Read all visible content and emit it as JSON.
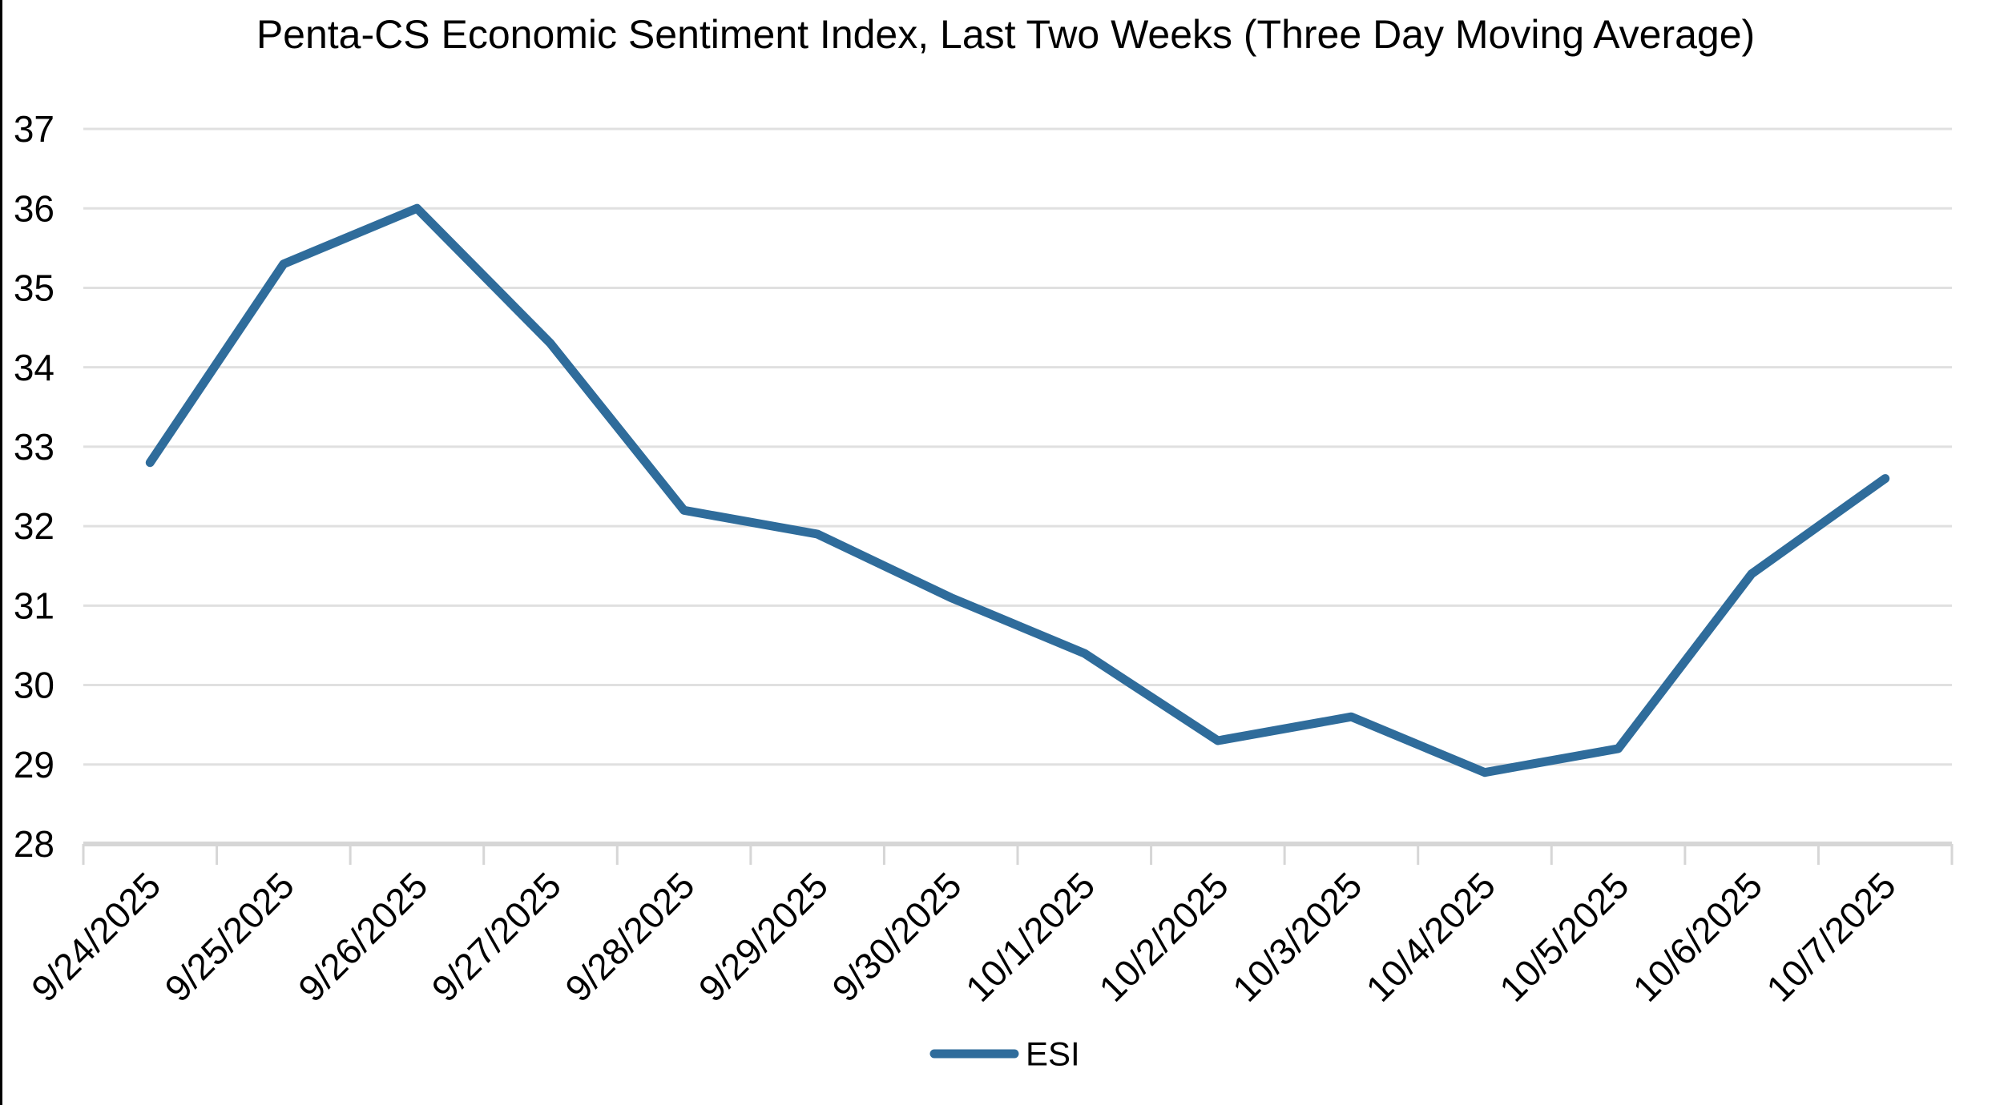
{
  "window": {
    "background": "#ffffff",
    "left_border_color": "#000000"
  },
  "chart_data": {
    "type": "line",
    "title": "Penta-CS Economic Sentiment Index, Last Two Weeks (Three Day Moving Average)",
    "categories": [
      "9/24/2025",
      "9/25/2025",
      "9/26/2025",
      "9/27/2025",
      "9/28/2025",
      "9/29/2025",
      "9/30/2025",
      "10/1/2025",
      "10/2/2025",
      "10/3/2025",
      "10/4/2025",
      "10/5/2025",
      "10/6/2025",
      "10/7/2025"
    ],
    "series": [
      {
        "name": "ESI",
        "color": "#2F6C9B",
        "values": [
          32.8,
          35.3,
          36.0,
          34.3,
          32.2,
          31.9,
          31.1,
          30.4,
          29.3,
          29.6,
          28.9,
          29.2,
          31.4,
          32.6
        ]
      }
    ],
    "xlabel": "",
    "ylabel": "",
    "ylim": [
      28,
      37
    ],
    "yticks": [
      28,
      29,
      30,
      31,
      32,
      33,
      34,
      35,
      36,
      37
    ],
    "grid": "horizontal",
    "legend_position": "bottom-center",
    "x_tick_label_rotation_deg": 45,
    "colors": {
      "gridline": "#E0E0E0",
      "axis_line": "#D6D6D6",
      "text": "#000000",
      "plot_background": "#ffffff"
    }
  }
}
